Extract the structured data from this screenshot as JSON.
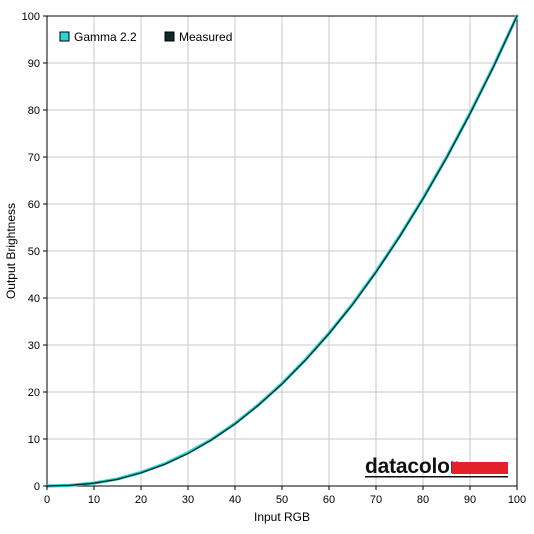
{
  "chart_data": {
    "type": "line",
    "xlabel": "Input RGB",
    "ylabel": "Output Brightness",
    "xlim": [
      0,
      100
    ],
    "ylim": [
      0,
      100
    ],
    "x_ticks": [
      "0",
      "10",
      "20",
      "30",
      "40",
      "50",
      "60",
      "70",
      "80",
      "90",
      "100"
    ],
    "y_ticks": [
      "0",
      "10",
      "20",
      "30",
      "40",
      "50",
      "60",
      "70",
      "80",
      "90",
      "100"
    ],
    "grid": true,
    "legend_position": "top-left",
    "x": [
      0,
      5,
      10,
      15,
      20,
      25,
      30,
      35,
      40,
      45,
      50,
      55,
      60,
      65,
      70,
      75,
      80,
      85,
      90,
      95,
      100
    ],
    "series": [
      {
        "name": "Gamma 2.2",
        "color": "#2ad4d4",
        "values": [
          0,
          0.14,
          0.63,
          1.5,
          2.9,
          4.7,
          7.1,
          9.9,
          13.3,
          17.3,
          21.8,
          26.9,
          32.5,
          38.7,
          45.6,
          53.1,
          61.2,
          69.9,
          79.3,
          89.3,
          100
        ]
      },
      {
        "name": "Measured",
        "color": "#0d2a2a",
        "values": [
          0,
          0.15,
          0.6,
          1.4,
          2.8,
          4.6,
          6.9,
          9.8,
          13.2,
          17.2,
          21.7,
          26.8,
          32.4,
          38.6,
          45.5,
          53.0,
          61.1,
          69.8,
          79.2,
          89.2,
          100
        ]
      }
    ]
  },
  "logo": {
    "text": "datacolor",
    "bar_color": "#e4202a"
  },
  "colors": {
    "grid": "#c8c8c8",
    "axis": "#000000",
    "background": "#ffffff"
  }
}
